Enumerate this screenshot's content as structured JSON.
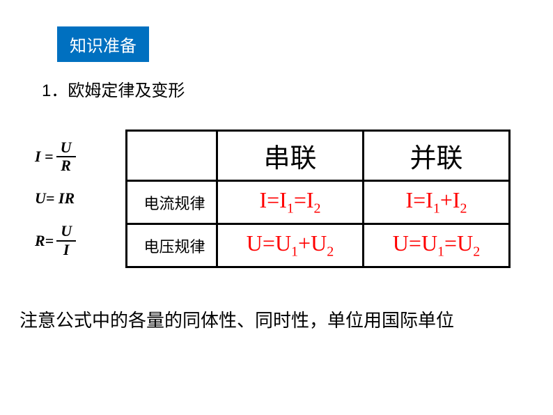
{
  "header": {
    "badge": "知识准备",
    "badge_bg": "#0070c0",
    "badge_color": "#ffffff"
  },
  "section": {
    "number": "1．",
    "title": "欧姆定律及变形"
  },
  "formulas": {
    "f1_left": "I =",
    "f1_num": "U",
    "f1_den": "R",
    "f2": "U= IR",
    "f3_left": "R=",
    "f3_num": "U",
    "f3_den": "I"
  },
  "table": {
    "header_series": "串联",
    "header_parallel": "并联",
    "row1_label": "电流规律",
    "row1_series": "I=I",
    "row1_series_sub1": "1",
    "row1_series_mid": "=I",
    "row1_series_sub2": "2",
    "row1_parallel": "I=I",
    "row1_parallel_sub1": "1",
    "row1_parallel_mid": "+I",
    "row1_parallel_sub2": "2",
    "row2_label": "电压规律",
    "row2_series": "U=U",
    "row2_series_sub1": "1",
    "row2_series_mid": "+U",
    "row2_series_sub2": "2",
    "row2_parallel": "U=U",
    "row2_parallel_sub1": "1",
    "row2_parallel_mid": "=U",
    "row2_parallel_sub2": "2"
  },
  "footnote": "注意公式中的各量的同体性、同时性，单位用国际单位",
  "colors": {
    "formula_red": "#ff0000",
    "text_black": "#000000",
    "background": "#ffffff"
  }
}
